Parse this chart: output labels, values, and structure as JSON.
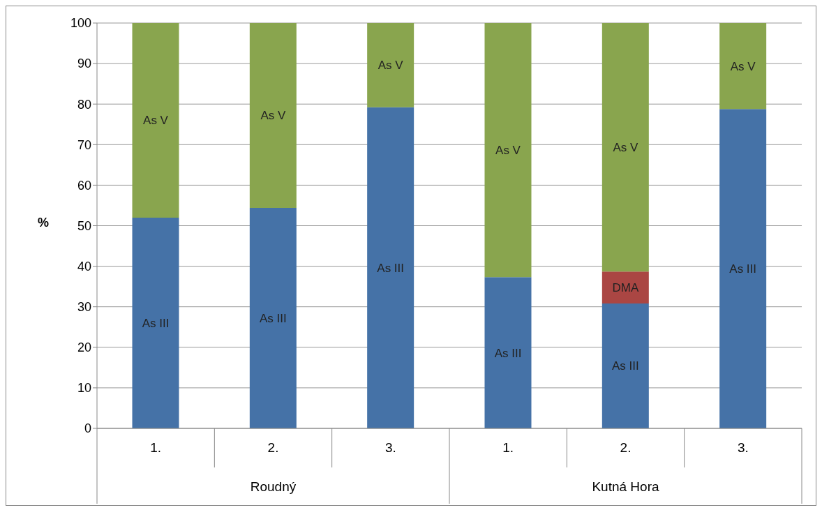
{
  "chart_data": {
    "type": "bar",
    "stacked": true,
    "ylabel": "%",
    "categories": [
      "1.",
      "2.",
      "3.",
      "1.",
      "2.",
      "3."
    ],
    "annotations": [
      "Roudný",
      "Kutná Hora"
    ],
    "series": [
      {
        "name": "As III",
        "color": "#4572a7",
        "values": [
          52,
          54.4,
          79.2,
          37.3,
          30.8,
          78.8
        ]
      },
      {
        "name": "DMA",
        "color": "#aa4643",
        "values": [
          null,
          null,
          null,
          null,
          7.9,
          null
        ]
      },
      {
        "name": "As V",
        "color": "#89a54e",
        "values": [
          48,
          45.6,
          20.8,
          62.7,
          61.3,
          21.2
        ]
      }
    ],
    "ylim": [
      0,
      100
    ],
    "yticks": [
      0,
      10,
      20,
      30,
      40,
      50,
      60,
      70,
      80,
      90,
      100
    ],
    "grid": "y",
    "legend": false
  }
}
